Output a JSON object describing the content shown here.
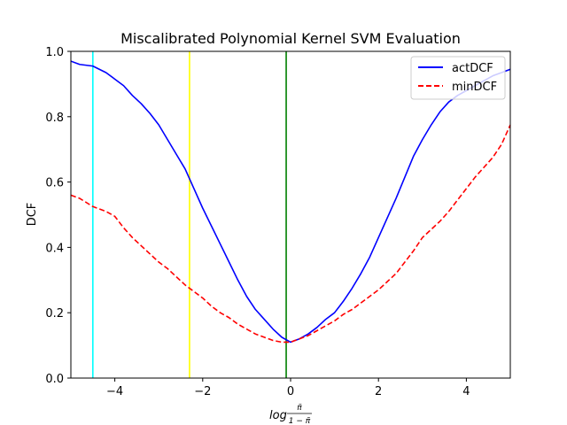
{
  "chart_data": {
    "type": "line",
    "title": "Miscalibrated Polynomial Kernel SVM Evaluation",
    "xlabel_base": "log",
    "xlabel_num": "π̃",
    "xlabel_den": "1 − π̃",
    "ylabel": "DCF",
    "xlim": [
      -5,
      5
    ],
    "ylim": [
      0,
      1
    ],
    "xticks": [
      -4,
      -2,
      0,
      2,
      4
    ],
    "xtick_labels": [
      "−4",
      "−2",
      "0",
      "2",
      "4"
    ],
    "yticks": [
      0.0,
      0.2,
      0.4,
      0.6,
      0.8,
      1.0
    ],
    "ytick_labels": [
      "0.0",
      "0.2",
      "0.4",
      "0.6",
      "0.8",
      "1.0"
    ],
    "legend_position": "top-right",
    "series": [
      {
        "name": "actDCF",
        "color": "#0000ff",
        "style": "solid",
        "x": [
          -5,
          -4.8,
          -4.5,
          -4.2,
          -4.0,
          -3.8,
          -3.6,
          -3.4,
          -3.2,
          -3.0,
          -2.8,
          -2.6,
          -2.4,
          -2.2,
          -2.0,
          -1.8,
          -1.6,
          -1.4,
          -1.2,
          -1.0,
          -0.8,
          -0.6,
          -0.4,
          -0.2,
          0.0,
          0.2,
          0.4,
          0.6,
          0.8,
          1.0,
          1.2,
          1.4,
          1.6,
          1.8,
          2.0,
          2.2,
          2.4,
          2.6,
          2.8,
          3.0,
          3.2,
          3.4,
          3.6,
          3.8,
          4.0,
          4.2,
          4.4,
          4.6,
          4.8,
          5.0
        ],
        "y": [
          0.97,
          0.96,
          0.955,
          0.935,
          0.915,
          0.895,
          0.865,
          0.84,
          0.81,
          0.775,
          0.73,
          0.685,
          0.64,
          0.58,
          0.52,
          0.465,
          0.41,
          0.355,
          0.3,
          0.25,
          0.21,
          0.18,
          0.15,
          0.125,
          0.11,
          0.12,
          0.135,
          0.155,
          0.18,
          0.2,
          0.235,
          0.275,
          0.32,
          0.37,
          0.43,
          0.49,
          0.55,
          0.615,
          0.68,
          0.73,
          0.775,
          0.815,
          0.845,
          0.865,
          0.88,
          0.895,
          0.91,
          0.925,
          0.935,
          0.945
        ]
      },
      {
        "name": "minDCF",
        "color": "#ff0000",
        "style": "dashed",
        "x": [
          -5,
          -4.8,
          -4.5,
          -4.2,
          -4.0,
          -3.8,
          -3.6,
          -3.4,
          -3.2,
          -3.0,
          -2.8,
          -2.6,
          -2.4,
          -2.2,
          -2.0,
          -1.8,
          -1.6,
          -1.4,
          -1.2,
          -1.0,
          -0.8,
          -0.6,
          -0.4,
          -0.2,
          0.0,
          0.2,
          0.4,
          0.6,
          0.8,
          1.0,
          1.2,
          1.4,
          1.6,
          1.8,
          2.0,
          2.2,
          2.4,
          2.6,
          2.8,
          3.0,
          3.2,
          3.4,
          3.6,
          3.8,
          4.0,
          4.2,
          4.4,
          4.6,
          4.8,
          5.0
        ],
        "y": [
          0.56,
          0.55,
          0.525,
          0.51,
          0.495,
          0.46,
          0.43,
          0.405,
          0.38,
          0.355,
          0.335,
          0.31,
          0.285,
          0.265,
          0.245,
          0.22,
          0.2,
          0.185,
          0.165,
          0.15,
          0.135,
          0.125,
          0.115,
          0.11,
          0.11,
          0.12,
          0.13,
          0.145,
          0.16,
          0.175,
          0.195,
          0.21,
          0.23,
          0.25,
          0.27,
          0.295,
          0.32,
          0.355,
          0.39,
          0.43,
          0.455,
          0.48,
          0.51,
          0.545,
          0.58,
          0.615,
          0.645,
          0.675,
          0.715,
          0.775
        ]
      }
    ],
    "vlines": [
      {
        "x": -4.5,
        "color": "#00ffff"
      },
      {
        "x": -2.3,
        "color": "#ffff00"
      },
      {
        "x": -0.1,
        "color": "#008000"
      }
    ]
  }
}
